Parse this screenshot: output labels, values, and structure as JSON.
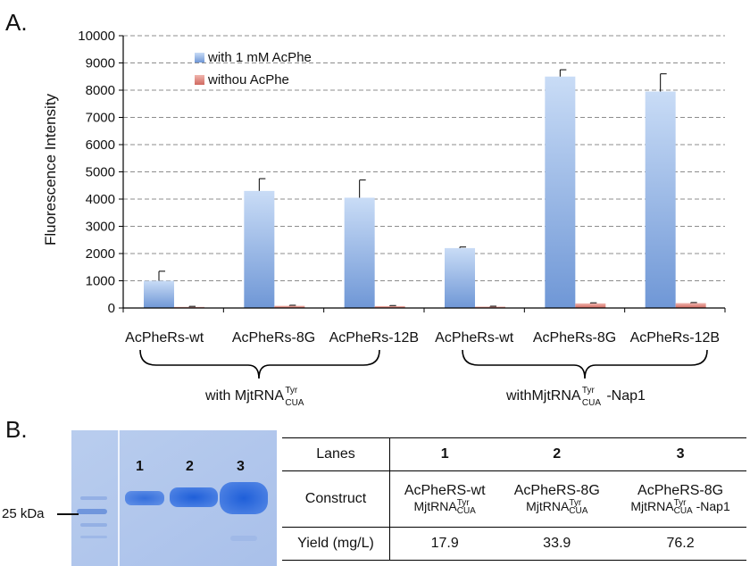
{
  "panel_a_label": "A.",
  "panel_b_label": "B.",
  "chart_data": {
    "type": "bar",
    "title": "",
    "xlabel": "",
    "ylabel": "Fluorescence Intensity",
    "ylim": [
      0,
      10000
    ],
    "yticks": [
      0,
      1000,
      2000,
      3000,
      4000,
      5000,
      6000,
      7000,
      8000,
      9000,
      10000
    ],
    "grid": true,
    "legend_position": "top-left",
    "categories": [
      "AcPheRs-wt",
      "AcPheRs-8G",
      "AcPheRs-12B",
      "AcPheRs-wt",
      "AcPheRs-8G",
      "AcPheRs-12B"
    ],
    "series": [
      {
        "name": "with 1 mM AcPhe",
        "color": "#7ea6e0",
        "values": [
          1000,
          4300,
          4050,
          2200,
          8500,
          7950
        ],
        "errors": [
          350,
          450,
          650,
          40,
          250,
          650
        ]
      },
      {
        "name": "withou AcPhe",
        "color": "#e0837b",
        "values": [
          40,
          80,
          70,
          50,
          170,
          180
        ],
        "errors": [
          20,
          20,
          20,
          15,
          20,
          20
        ]
      }
    ],
    "groups": [
      {
        "prefix": "with",
        "name": "MjtRNA",
        "superscript": "Tyr",
        "subscript": "CUA",
        "suffix": ""
      },
      {
        "prefix": "with",
        "name": "MjtRNA",
        "superscript": "Tyr",
        "subscript": "CUA",
        "suffix": "-Nap1"
      }
    ]
  },
  "gel": {
    "marker_label": "25 kDa",
    "lane_labels": [
      "1",
      "2",
      "3"
    ]
  },
  "yield_table": {
    "header_label": "Lanes",
    "lanes": [
      "1",
      "2",
      "3"
    ],
    "construct_label": "Construct",
    "constructs": [
      {
        "enzyme": "AcPheRS-wt",
        "trna": "MjtRNA",
        "sup": "Tyr",
        "sub": "CUA",
        "suffix": ""
      },
      {
        "enzyme": "AcPheRS-8G",
        "trna": "MjtRNA",
        "sup": "Tyr",
        "sub": "CUA",
        "suffix": ""
      },
      {
        "enzyme": "AcPheRS-8G",
        "trna": "MjtRNA",
        "sup": "Tyr",
        "sub": "CUA",
        "suffix": " -Nap1"
      }
    ],
    "yield_label": "Yield (mg/L)",
    "yields": [
      "17.9",
      "33.9",
      "76.2"
    ]
  }
}
